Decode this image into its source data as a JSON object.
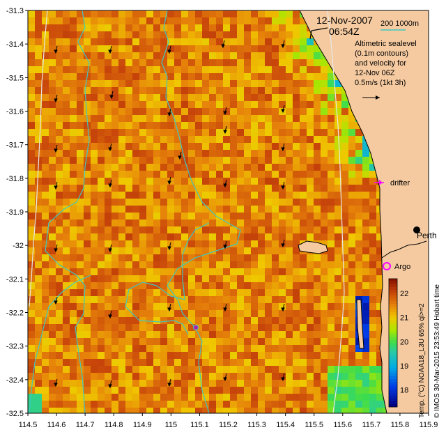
{
  "header": {
    "date": "12-Nov-2007",
    "time": "06:54Z"
  },
  "bathymetry_legend": {
    "label": "200  1000m",
    "color": "#40c8c0"
  },
  "altimetry_note": {
    "lines": [
      "Altimetric sealevel",
      "(0.1m contours)",
      "and velocity for",
      "12-Nov 06Z",
      "0.5m/s (1kt 3h)"
    ]
  },
  "markers": {
    "drifter": {
      "label": "drifter",
      "color": "#ff00ff"
    },
    "argo": {
      "label": "Argo",
      "color": "#ff00ff"
    },
    "perth": {
      "label": "Perth"
    }
  },
  "axes": {
    "x_ticks": [
      "114.5",
      "114.6",
      "114.7",
      "114.8",
      "114.9",
      "115",
      "115.1",
      "115.2",
      "115.3",
      "115.4",
      "115.5",
      "115.6",
      "115.7",
      "115.8",
      "115.9"
    ],
    "y_ticks": [
      "-31.3",
      "-31.4",
      "-31.5",
      "-31.6",
      "-31.7",
      "-31.8",
      "-31.9",
      "-32",
      "-32.1",
      "-32.2",
      "-32.3",
      "-32.4",
      "-32.5"
    ],
    "lon_range": [
      114.5,
      115.9
    ],
    "lat_range": [
      -32.5,
      -31.3
    ]
  },
  "colorbar": {
    "ticks": [
      "22",
      "21",
      "20",
      "19",
      "18"
    ],
    "range": [
      17.3,
      22.6
    ],
    "label": "Temp. (°C) NOAA18_L3U 65% ql>=2"
  },
  "credit": "© IMOS 30-Mar-2015 23:53:49 Hobart time",
  "colors": {
    "land": "#f5caa0",
    "coast": "#000000",
    "isobath": "#40c8c0",
    "contour": "#e8e8e8"
  }
}
